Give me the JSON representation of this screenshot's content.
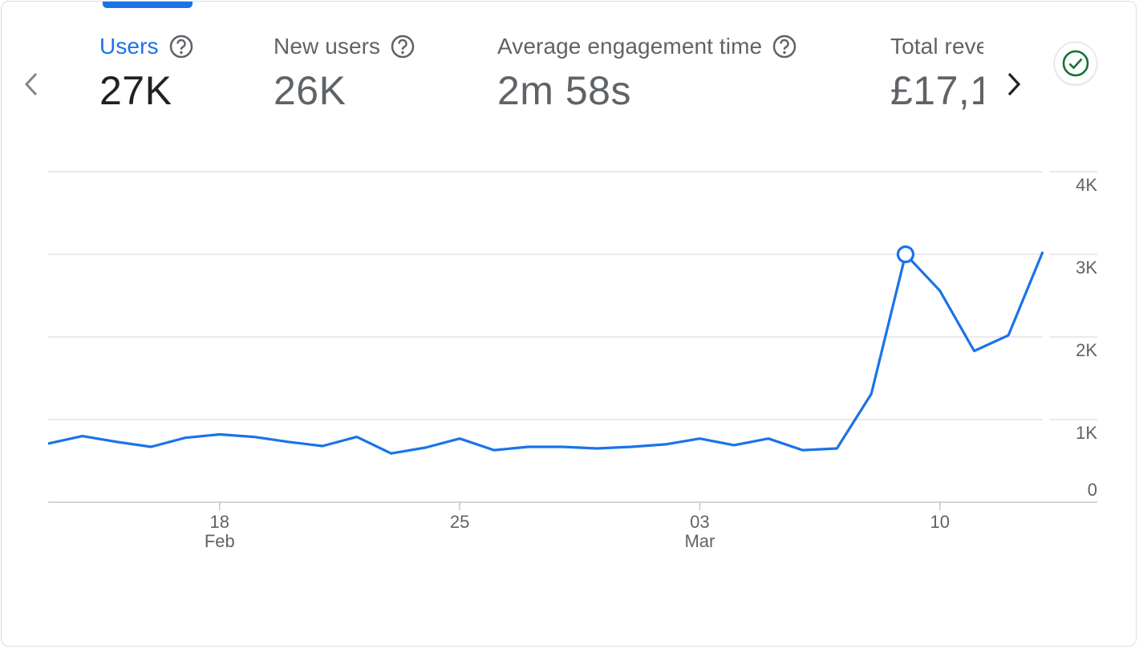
{
  "metrics": [
    {
      "label": "Users",
      "value": "27K",
      "active": true
    },
    {
      "label": "New users",
      "value": "26K",
      "active": false
    },
    {
      "label": "Average engagement time",
      "value": "2m 58s",
      "active": false
    },
    {
      "label": "Total revenue",
      "value": "£17,1",
      "active": false
    }
  ],
  "icons": {
    "prev": "chevron-left-icon",
    "next": "chevron-right-icon",
    "help": "help-circle-icon",
    "status": "check-circle-icon"
  },
  "colors": {
    "accent": "#1a73e8",
    "line": "#1a73e8",
    "status_green": "#137333",
    "grid": "#e0e0e0"
  },
  "chart_data": {
    "type": "line",
    "series": [
      {
        "values": [
          710,
          800,
          730,
          670,
          780,
          820,
          790,
          730,
          680,
          790,
          590,
          660,
          770,
          630,
          670,
          670,
          650,
          670,
          700,
          770,
          690,
          770,
          630,
          650,
          1310,
          3000,
          2560,
          1830,
          2020,
          3030
        ]
      }
    ],
    "x_tick_labels": [
      {
        "index": 5,
        "day": "18",
        "month": "Feb"
      },
      {
        "index": 12,
        "day": "25",
        "month": ""
      },
      {
        "index": 19,
        "day": "03",
        "month": "Mar"
      },
      {
        "index": 26,
        "day": "10",
        "month": ""
      }
    ],
    "y_ticks": [
      {
        "value": 0,
        "label": "0"
      },
      {
        "value": 1000,
        "label": "1K"
      },
      {
        "value": 2000,
        "label": "2K"
      },
      {
        "value": 3000,
        "label": "3K"
      },
      {
        "value": 4000,
        "label": "4K"
      }
    ],
    "ylim": [
      0,
      4000
    ],
    "highlight_index": 25,
    "grid": true
  }
}
